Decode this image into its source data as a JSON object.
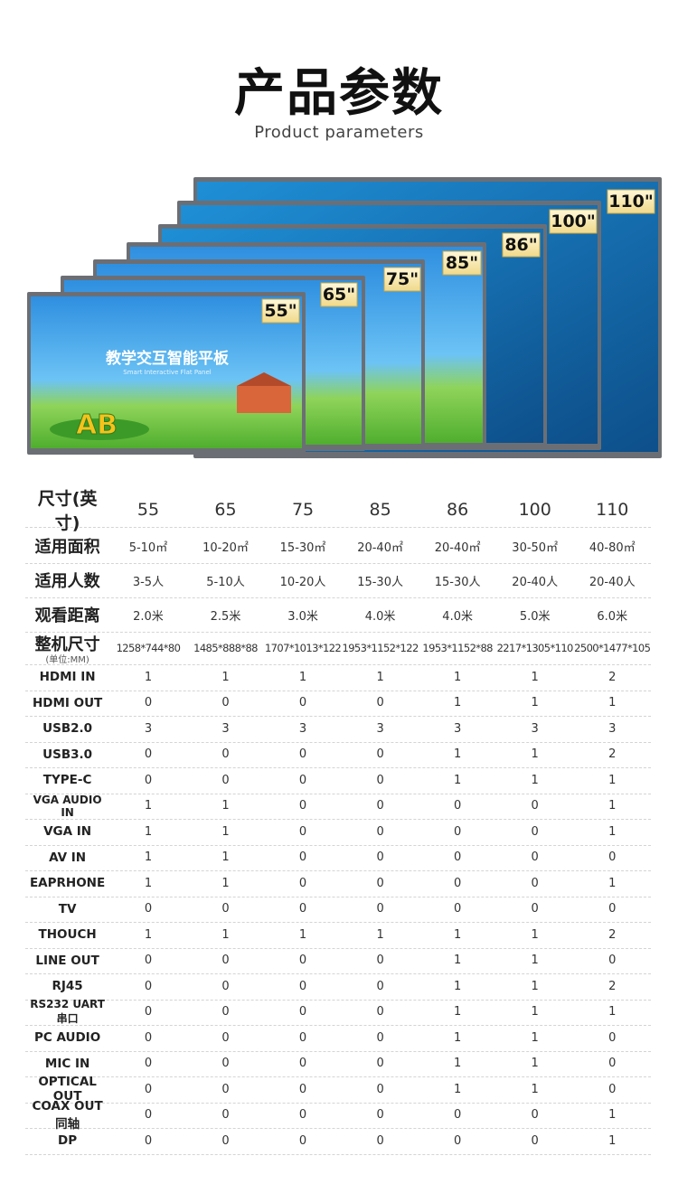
{
  "header": {
    "title": "产品参数",
    "subtitle": "Product parameters"
  },
  "banner": {
    "sizes": [
      "110\"",
      "100\"",
      "86\"",
      "85\"",
      "75\"",
      "65\"",
      "55\""
    ],
    "screen_title": "教学交互智能平板",
    "screen_subtitle": "Smart Interactive Flat Panel",
    "logo": "AB"
  },
  "table": {
    "header": [
      "尺寸(英寸)",
      "55",
      "65",
      "75",
      "85",
      "86",
      "100",
      "110"
    ],
    "rows": [
      {
        "label": "适用面积",
        "values": [
          "5-10㎡",
          "10-20㎡",
          "15-30㎡",
          "20-40㎡",
          "20-40㎡",
          "30-50㎡",
          "40-80㎡"
        ]
      },
      {
        "label": "适用人数",
        "values": [
          "3-5人",
          "5-10人",
          "10-20人",
          "15-30人",
          "15-30人",
          "20-40人",
          "20-40人"
        ]
      },
      {
        "label": "观看距离",
        "values": [
          "2.0米",
          "2.5米",
          "3.0米",
          "4.0米",
          "4.0米",
          "5.0米",
          "6.0米"
        ]
      },
      {
        "label": "整机尺寸",
        "note": "(单位:MM)",
        "values": [
          "1258*744*80",
          "1485*888*88",
          "1707*1013*122",
          "1953*1152*122",
          "1953*1152*88",
          "2217*1305*110",
          "2500*1477*105"
        ]
      },
      {
        "label": "HDMI IN",
        "values": [
          "1",
          "1",
          "1",
          "1",
          "1",
          "1",
          "2"
        ]
      },
      {
        "label": "HDMI OUT",
        "values": [
          "0",
          "0",
          "0",
          "0",
          "1",
          "1",
          "1"
        ]
      },
      {
        "label": "USB2.0",
        "values": [
          "3",
          "3",
          "3",
          "3",
          "3",
          "3",
          "3"
        ]
      },
      {
        "label": "USB3.0",
        "values": [
          "0",
          "0",
          "0",
          "0",
          "1",
          "1",
          "2"
        ]
      },
      {
        "label": "TYPE-C",
        "values": [
          "0",
          "0",
          "0",
          "0",
          "1",
          "1",
          "1"
        ]
      },
      {
        "label": "VGA AUDIO IN",
        "values": [
          "1",
          "1",
          "0",
          "0",
          "0",
          "0",
          "1"
        ]
      },
      {
        "label": "VGA IN",
        "values": [
          "1",
          "1",
          "0",
          "0",
          "0",
          "0",
          "1"
        ]
      },
      {
        "label": "AV IN",
        "values": [
          "1",
          "1",
          "0",
          "0",
          "0",
          "0",
          "0"
        ]
      },
      {
        "label": "EAPRHONE",
        "values": [
          "1",
          "1",
          "0",
          "0",
          "0",
          "0",
          "1"
        ]
      },
      {
        "label": "TV",
        "values": [
          "0",
          "0",
          "0",
          "0",
          "0",
          "0",
          "0"
        ]
      },
      {
        "label": "THOUCH",
        "values": [
          "1",
          "1",
          "1",
          "1",
          "1",
          "1",
          "2"
        ]
      },
      {
        "label": "LINE OUT",
        "values": [
          "0",
          "0",
          "0",
          "0",
          "1",
          "1",
          "0"
        ]
      },
      {
        "label": "RJ45",
        "values": [
          "0",
          "0",
          "0",
          "0",
          "1",
          "1",
          "2"
        ]
      },
      {
        "label": "RS232 UART 串口",
        "values": [
          "0",
          "0",
          "0",
          "0",
          "1",
          "1",
          "1"
        ]
      },
      {
        "label": "PC AUDIO",
        "values": [
          "0",
          "0",
          "0",
          "0",
          "1",
          "1",
          "0"
        ]
      },
      {
        "label": "MIC IN",
        "values": [
          "0",
          "0",
          "0",
          "0",
          "1",
          "1",
          "0"
        ]
      },
      {
        "label": "OPTICAL OUT",
        "values": [
          "0",
          "0",
          "0",
          "0",
          "1",
          "1",
          "0"
        ]
      },
      {
        "label": "COAX OUT 同轴",
        "values": [
          "0",
          "0",
          "0",
          "0",
          "0",
          "0",
          "1"
        ]
      },
      {
        "label": "DP",
        "values": [
          "0",
          "0",
          "0",
          "0",
          "0",
          "0",
          "1"
        ]
      }
    ]
  }
}
